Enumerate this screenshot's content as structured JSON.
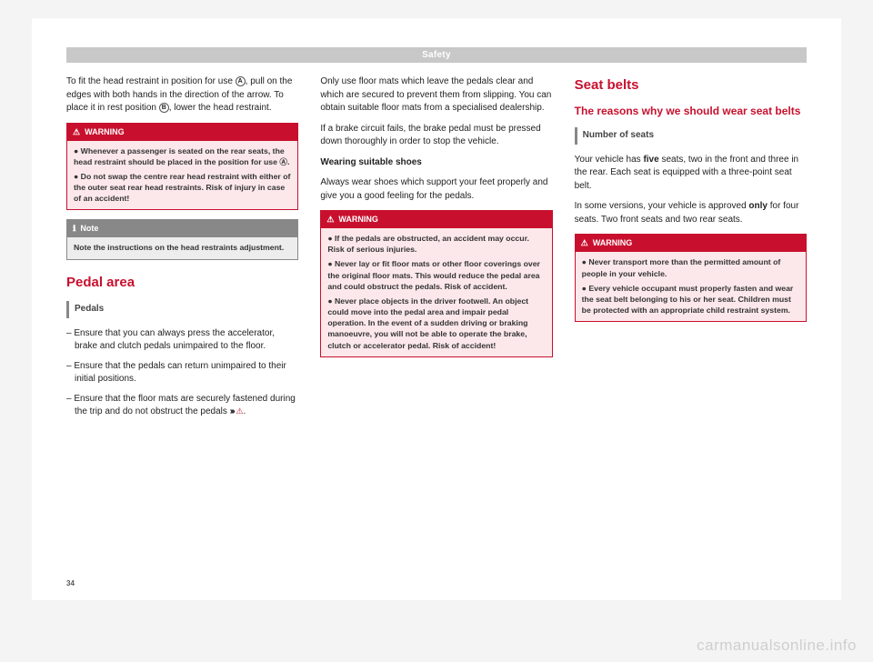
{
  "header": "Safety",
  "pageNumber": "34",
  "watermark": "carmanualsonline.info",
  "colors": {
    "accent": "#c8102e",
    "note": "#888888",
    "headerBar": "#c8c8c8"
  },
  "col1": {
    "intro_a": "To fit the head restraint in position for use ",
    "intro_b": ", pull on the edges with both hands in the direction of the arrow. To place it in rest posi­tion ",
    "intro_c": ", lower the head restraint.",
    "badgeA": "A",
    "badgeB": "B",
    "warning": {
      "title": "WARNING",
      "items": [
        "Whenever a passenger is seated on the rear seats, the head restraint should be placed in the position for use Ⓐ.",
        "Do not swap the centre rear head restraint with either of the outer seat rear head re­straints. Risk of injury in case of an accident!"
      ]
    },
    "note": {
      "title": "Note",
      "text": "Note the instructions on the head restraints adjustment."
    },
    "sectionTitle": "Pedal area",
    "subHeading": "Pedals",
    "list": [
      "Ensure that you can always press the accel­erator, brake and clutch pedals unimpaired to the floor.",
      "Ensure that the pedals can return unim­paired to their initial positions.",
      "Ensure that the floor mats are securely fas­tened during the trip and do not obstruct the pedals ››› ⚠."
    ]
  },
  "col2": {
    "p1": "Only use floor mats which leave the pedals clear and which are secured to prevent them from slipping. You can obtain suitable floor mats from a specialised dealership.",
    "p2": "If a brake circuit fails, the brake pedal must be pressed down thoroughly in order to stop the vehicle.",
    "subBold": "Wearing suitable shoes",
    "p3": "Always wear shoes which support your feet properly and give you a good feeling for the pedals.",
    "warning": {
      "title": "WARNING",
      "items": [
        "If the pedals are obstructed, an accident may occur. Risk of serious injuries.",
        "Never lay or fit floor mats or other floor cov­erings over the original floor mats. This would reduce the pedal area and could ob­struct the pedals. Risk of accident.",
        "Never place objects in the driver footwell. An object could move into the pedal area and impair pedal operation. In the event of a sud­den driving or braking manoeuvre, you will not be able to operate the brake, clutch or ac­celerator pedal. Risk of accident!"
      ]
    }
  },
  "col3": {
    "sectionTitle": "Seat belts",
    "subsectionTitle": "The reasons why we should wear seat belts",
    "subHeading": "Number of seats",
    "p1a": "Your vehicle has ",
    "p1b": "five",
    "p1c": " seats, two in the front and three in the rear. Each seat is equipped with a three-point seat belt.",
    "p2a": "In some versions, your vehicle is approved ",
    "p2b": "only",
    "p2c": " for four seats. Two front seats and two rear seats.",
    "warning": {
      "title": "WARNING",
      "items": [
        "Never transport more than the permitted amount of people in your vehicle.",
        "Every vehicle occupant must properly fas­ten and wear the seat belt belonging to his or her seat. Children must be protected with an appropriate child restraint system."
      ]
    }
  }
}
